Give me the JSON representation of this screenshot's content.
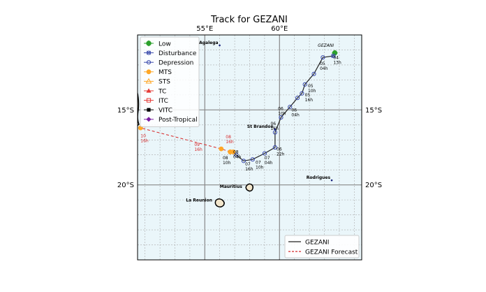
{
  "title": "Track for GEZANI",
  "chart_data": {
    "type": "line",
    "title": "Track for GEZANI",
    "xlim": [
      50.5,
      65.5
    ],
    "ylim": [
      -25.0,
      -10.0
    ],
    "x_ticks": [
      {
        "value": 55,
        "label": "55°E"
      },
      {
        "value": 60,
        "label": "60°E"
      }
    ],
    "y_ticks": [
      {
        "value": -15,
        "label": "15°S"
      },
      {
        "value": -20,
        "label": "20°S"
      }
    ],
    "grid": true,
    "grid_minor_step": 1,
    "colors": {
      "ocean": "#eaf6fa",
      "land": "#f2e6cc",
      "track": "#222222",
      "forecast": "#d62728"
    },
    "legend_categories": [
      {
        "name": "Low",
        "color": "#2ca02c",
        "marker": "plus-circle"
      },
      {
        "name": "Disturbance",
        "color": "#3949ab",
        "marker": "cross-circle"
      },
      {
        "name": "Depression",
        "color": "#3949ab",
        "marker": "circle"
      },
      {
        "name": "MTS",
        "color": "#ffa726",
        "marker": "circle-filled"
      },
      {
        "name": "STS",
        "color": "#ffa726",
        "marker": "triangle-open"
      },
      {
        "name": "TC",
        "color": "#e53935",
        "marker": "triangle"
      },
      {
        "name": "ITC",
        "color": "#e53935",
        "marker": "square-open"
      },
      {
        "name": "VITC",
        "color": "#000000",
        "marker": "square"
      },
      {
        "name": "Post-Tropical",
        "color": "#7b1fa2",
        "marker": "diamond"
      }
    ],
    "series": [
      {
        "name": "GEZANI",
        "style": "solid",
        "points": [
          {
            "lon": 63.7,
            "lat": -11.2,
            "cat": "Low",
            "label": ""
          },
          {
            "lon": 63.6,
            "lat": -11.4,
            "cat": "Disturbance",
            "label": ""
          },
          {
            "lon": 62.9,
            "lat": -11.5,
            "cat": "Depression",
            "label": ""
          },
          {
            "lon": 62.3,
            "lat": -12.6,
            "cat": "Depression",
            "label": ""
          },
          {
            "lon": 61.7,
            "lat": -13.3,
            "cat": "Depression",
            "label": ""
          },
          {
            "lon": 61.5,
            "lat": -13.9,
            "cat": "Depression",
            "label": ""
          },
          {
            "lon": 61.2,
            "lat": -14.2,
            "cat": "Depression",
            "label": ""
          },
          {
            "lon": 60.7,
            "lat": -14.8,
            "cat": "Depression",
            "label": ""
          },
          {
            "lon": 60.1,
            "lat": -15.5,
            "cat": "Depression",
            "label": ""
          },
          {
            "lon": 59.7,
            "lat": -16.5,
            "cat": "Depression",
            "label": ""
          },
          {
            "lon": 59.7,
            "lat": -17.5,
            "cat": "Depression",
            "label": ""
          },
          {
            "lon": 59.0,
            "lat": -17.9,
            "cat": "Depression",
            "label": ""
          },
          {
            "lon": 58.2,
            "lat": -18.3,
            "cat": "Depression",
            "label": ""
          },
          {
            "lon": 57.6,
            "lat": -18.4,
            "cat": "Depression",
            "label": ""
          },
          {
            "lon": 57.1,
            "lat": -18.0,
            "cat": "Depression",
            "label": ""
          },
          {
            "lon": 56.9,
            "lat": -17.8,
            "cat": "MTS",
            "label": ""
          },
          {
            "lon": 56.7,
            "lat": -17.8,
            "cat": "MTS",
            "label": ""
          }
        ]
      },
      {
        "name": "GEZANI Forecast",
        "style": "dashed",
        "points": [
          {
            "lon": 56.7,
            "lat": -17.8,
            "cat": "MTS"
          },
          {
            "lon": 56.1,
            "lat": -17.6,
            "cat": "MTS"
          },
          {
            "lon": 50.7,
            "lat": -16.2,
            "cat": "MTS"
          }
        ]
      }
    ],
    "point_labels": [
      {
        "lon": 63.6,
        "lat": -11.6,
        "lines": [
          "04",
          "13h"
        ],
        "color": "black"
      },
      {
        "lon": 62.7,
        "lat": -12.0,
        "lines": [
          "05",
          "04h"
        ],
        "color": "black"
      },
      {
        "lon": 61.9,
        "lat": -13.5,
        "lines": [
          "05",
          "10h"
        ],
        "color": "black"
      },
      {
        "lon": 61.7,
        "lat": -14.1,
        "lines": [
          "05",
          "16h"
        ],
        "color": "black"
      },
      {
        "lon": 59.9,
        "lat": -15.0,
        "lines": [
          "06",
          "10h"
        ],
        "color": "black"
      },
      {
        "lon": 60.8,
        "lat": -15.1,
        "lines": [
          "06",
          "04h"
        ],
        "color": "black"
      },
      {
        "lon": 59.4,
        "lat": -16.0,
        "lines": [
          "06",
          "16h"
        ],
        "color": "black"
      },
      {
        "lon": 59.8,
        "lat": -17.7,
        "lines": [
          "06",
          "22h"
        ],
        "color": "black"
      },
      {
        "lon": 59.0,
        "lat": -18.3,
        "lines": [
          "07",
          "04h"
        ],
        "color": "black"
      },
      {
        "lon": 58.4,
        "lat": -18.6,
        "lines": [
          "07",
          "10h"
        ],
        "color": "black"
      },
      {
        "lon": 57.7,
        "lat": -18.7,
        "lines": [
          "07",
          "16h"
        ],
        "color": "black"
      },
      {
        "lon": 56.9,
        "lat": -17.9,
        "lines": [
          "08",
          "04h"
        ],
        "color": "black"
      },
      {
        "lon": 56.2,
        "lat": -18.3,
        "lines": [
          "08",
          "10h"
        ],
        "color": "black"
      },
      {
        "lon": 56.4,
        "lat": -16.9,
        "lines": [
          "08",
          "16h"
        ],
        "color": "red"
      },
      {
        "lon": 54.3,
        "lat": -17.4,
        "lines": [
          "09",
          "16h"
        ],
        "color": "red"
      },
      {
        "lon": 50.7,
        "lat": -16.5,
        "lines": [
          "",
          "10",
          "16h"
        ],
        "color": "red"
      }
    ],
    "storm_label": {
      "text": "GEZANI",
      "lon": 63.1,
      "lat": -10.8
    },
    "places": [
      {
        "name": "Agalega",
        "lon": 55.9,
        "lat": -10.6,
        "dot": true
      },
      {
        "name": "St Brandon",
        "lon": 59.6,
        "lat": -16.2,
        "dot": true
      },
      {
        "name": "Rodrigues",
        "lon": 63.4,
        "lat": -19.6,
        "dot": true
      },
      {
        "name": "Mauritius",
        "lon": 57.5,
        "lat": -20.2,
        "dot": false
      },
      {
        "name": "La Reunion",
        "lon": 55.5,
        "lat": -21.1,
        "dot": false
      }
    ],
    "legend_tracks": [
      {
        "name": "GEZANI",
        "style": "solid",
        "color": "#222222"
      },
      {
        "name": "GEZANI Forecast",
        "style": "dashed",
        "color": "#d62728"
      }
    ]
  }
}
